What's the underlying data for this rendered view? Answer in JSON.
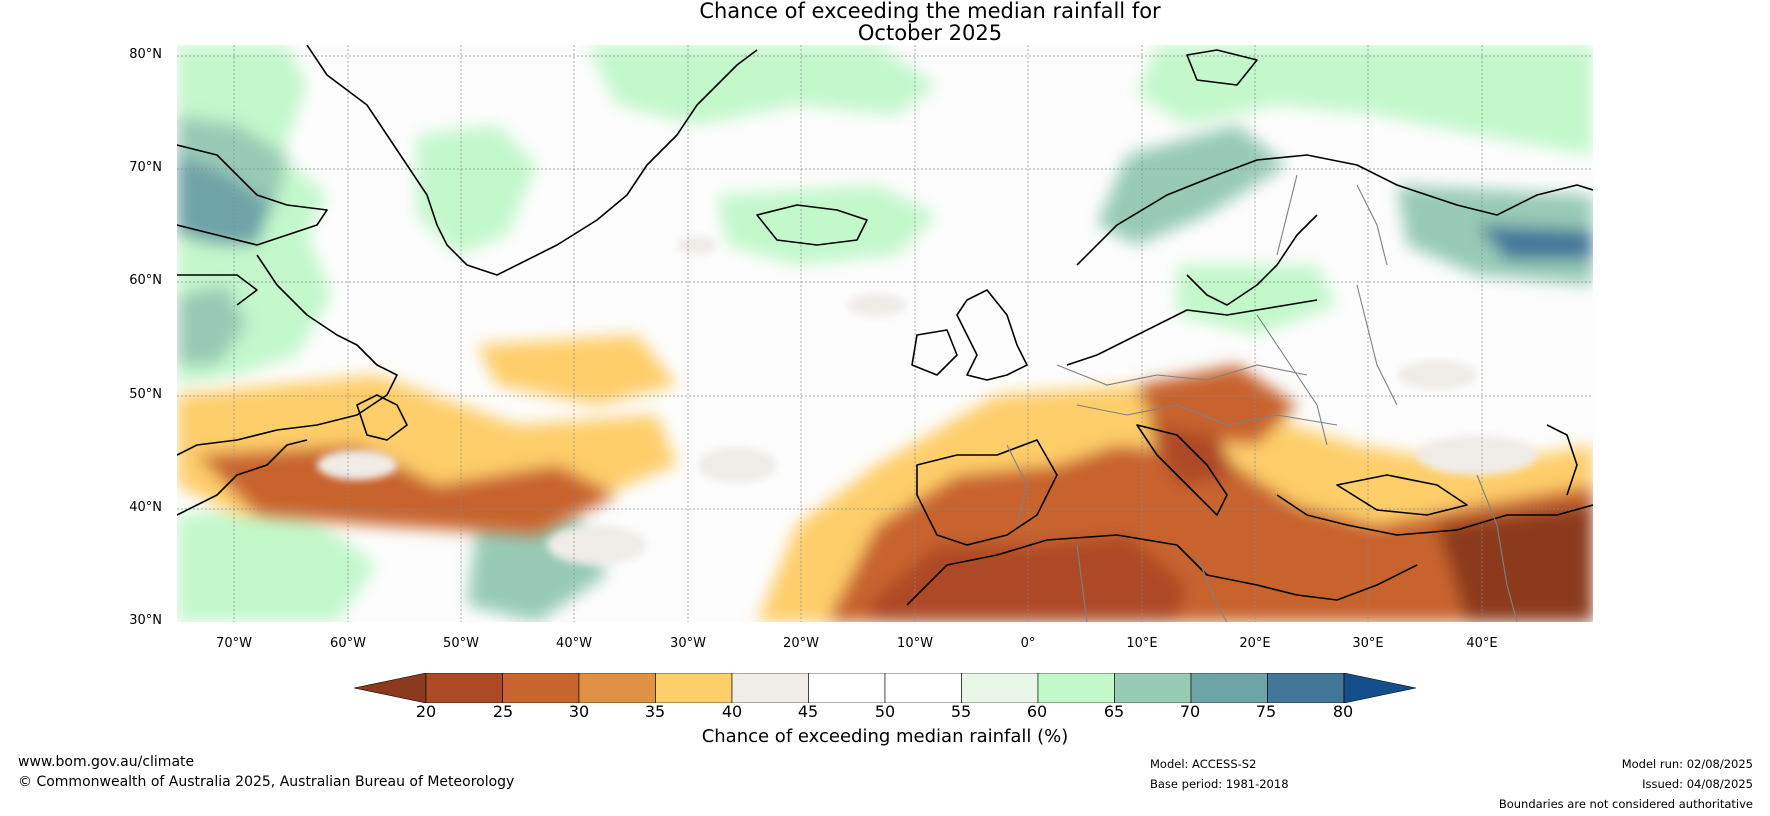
{
  "title": {
    "line1": "Chance of exceeding the median rainfall for",
    "line2": "October 2025"
  },
  "map": {
    "lat_labels": [
      "80°N",
      "70°N",
      "60°N",
      "50°N",
      "40°N",
      "30°N"
    ],
    "lon_labels": [
      "70°W",
      "60°W",
      "50°W",
      "40°W",
      "30°W",
      "20°W",
      "10°W",
      "0°",
      "10°E",
      "20°E",
      "30°E",
      "40°E"
    ],
    "lat_range": [
      30,
      81
    ],
    "lon_range": [
      -75,
      50
    ],
    "grid": true
  },
  "colorbar": {
    "label": "Chance of exceeding median rainfall (%)",
    "ticks": [
      "20",
      "25",
      "30",
      "35",
      "40",
      "45",
      "50",
      "55",
      "60",
      "65",
      "70",
      "75",
      "80"
    ],
    "colors": [
      "#8b3a1e",
      "#ad4a26",
      "#c8642e",
      "#df9245",
      "#fece6a",
      "#f0ece8",
      "#ffffff",
      "#ffffff",
      "#e9f7e9",
      "#c3f8cb",
      "#97cbb6",
      "#6ea3a7",
      "#43779a",
      "#134f8a"
    ],
    "extend": "both"
  },
  "footer": {
    "url": "www.bom.gov.au/climate",
    "copyright": "© Commonwealth of Australia 2025, Australian Bureau of Meteorology",
    "model": "Model: ACCESS-S2",
    "base_period": "Base period: 1981-2018",
    "model_run": "Model run: 02/08/2025",
    "issued": "Issued: 04/08/2025",
    "disclaimer": "Boundaries are not considered authoritative"
  }
}
